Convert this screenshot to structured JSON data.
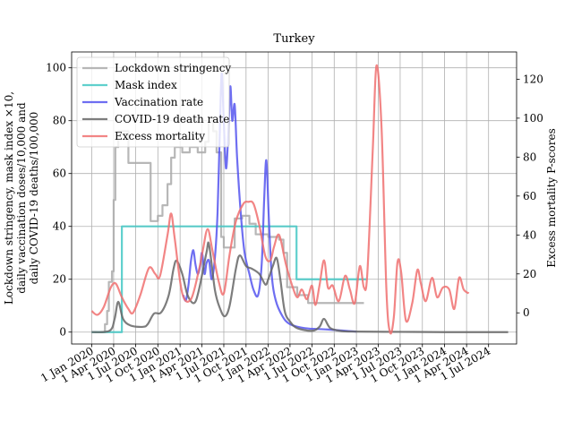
{
  "chart_data": {
    "type": "line",
    "title": "Turkey",
    "ylabel_left": [
      "Lockdown stringency, mask index ×10,",
      "daily vaccination doses/10,000 and",
      "daily COVID-19 deaths/100,000"
    ],
    "ylabel_right": "Excess mortality P-scores",
    "ylim_left": [
      -4.5,
      106
    ],
    "ylim_right": [
      -16,
      134
    ],
    "xlim": [
      "2019-10-10",
      "2024-10-25"
    ],
    "grid": true,
    "legend_position": "top-left",
    "x_ticks": [
      "2020-01-01",
      "2020-04-01",
      "2020-07-01",
      "2020-10-01",
      "2021-01-01",
      "2021-04-01",
      "2021-07-01",
      "2021-10-01",
      "2022-01-01",
      "2022-04-01",
      "2022-07-01",
      "2022-10-01",
      "2023-01-01",
      "2023-04-01",
      "2023-07-01",
      "2023-10-01",
      "2024-01-01",
      "2024-04-01",
      "2024-07-01"
    ],
    "x_tick_labels": [
      "1 Jan 2020",
      "1 Apr 2020",
      "1 Jul 2020",
      "1 Oct 2020",
      "1 Jan 2021",
      "1 Apr 2021",
      "1 Jul 2021",
      "1 Oct 2021",
      "1 Jan 2022",
      "1 Apr 2022",
      "1 Jul 2022",
      "1 Oct 2022",
      "1 Jan 2023",
      "1 Apr 2023",
      "1 Jul 2023",
      "1 Oct 2023",
      "1 Jan 2024",
      "1 Apr 2024",
      "1 Jul 2024"
    ],
    "y_ticks_left": [
      0,
      20,
      40,
      60,
      80,
      100
    ],
    "y_ticks_right": [
      0,
      20,
      40,
      60,
      80,
      100,
      120
    ],
    "series": [
      {
        "name": "Lockdown stringency",
        "axis": "left",
        "color": "#aaaaaa",
        "step": true,
        "points": [
          [
            "2020-01-01",
            0
          ],
          [
            "2020-02-05",
            0
          ],
          [
            "2020-02-25",
            3
          ],
          [
            "2020-03-05",
            8
          ],
          [
            "2020-03-12",
            19
          ],
          [
            "2020-03-25",
            23
          ],
          [
            "2020-04-01",
            50
          ],
          [
            "2020-04-08",
            70
          ],
          [
            "2020-04-20",
            76
          ],
          [
            "2020-05-15",
            76
          ],
          [
            "2020-06-01",
            64
          ],
          [
            "2020-08-15",
            64
          ],
          [
            "2020-09-01",
            42
          ],
          [
            "2020-09-15",
            42
          ],
          [
            "2020-10-01",
            44
          ],
          [
            "2020-10-20",
            48
          ],
          [
            "2020-11-10",
            56
          ],
          [
            "2020-11-25",
            66
          ],
          [
            "2020-12-10",
            70
          ],
          [
            "2020-12-25",
            70
          ],
          [
            "2021-01-10",
            68
          ],
          [
            "2021-02-10",
            70
          ],
          [
            "2021-03-15",
            68
          ],
          [
            "2021-04-15",
            72
          ],
          [
            "2021-04-29",
            80
          ],
          [
            "2021-05-18",
            76
          ],
          [
            "2021-06-01",
            68
          ],
          [
            "2021-06-20",
            36
          ],
          [
            "2021-07-01",
            32
          ],
          [
            "2021-08-01",
            32
          ],
          [
            "2021-08-15",
            43
          ],
          [
            "2021-09-15",
            44
          ],
          [
            "2021-10-15",
            41
          ],
          [
            "2021-11-10",
            37
          ],
          [
            "2022-01-01",
            36
          ],
          [
            "2022-02-15",
            35
          ],
          [
            "2022-03-05",
            30
          ],
          [
            "2022-03-20",
            17
          ],
          [
            "2022-05-01",
            14
          ],
          [
            "2022-06-15",
            11
          ],
          [
            "2022-10-01",
            11
          ],
          [
            "2022-12-01",
            11
          ],
          [
            "2023-02-01",
            11
          ]
        ]
      },
      {
        "name": "Mask index",
        "axis": "left",
        "color": "#44c8c4",
        "step": true,
        "points": [
          [
            "2020-01-01",
            0
          ],
          [
            "2020-05-01",
            0
          ],
          [
            "2020-05-05",
            40
          ],
          [
            "2022-04-25",
            40
          ],
          [
            "2022-04-28",
            20
          ],
          [
            "2023-02-10",
            20
          ]
        ]
      },
      {
        "name": "Vaccination rate",
        "axis": "left",
        "color": "#5555ee",
        "step": false,
        "points": [
          [
            "2021-01-14",
            14
          ],
          [
            "2021-01-25",
            12
          ],
          [
            "2021-02-05",
            18
          ],
          [
            "2021-02-15",
            27
          ],
          [
            "2021-02-25",
            31
          ],
          [
            "2021-03-05",
            26
          ],
          [
            "2021-03-15",
            22
          ],
          [
            "2021-03-25",
            25
          ],
          [
            "2021-04-02",
            30
          ],
          [
            "2021-04-12",
            22
          ],
          [
            "2021-04-20",
            26
          ],
          [
            "2021-05-01",
            27
          ],
          [
            "2021-05-12",
            20
          ],
          [
            "2021-05-25",
            28
          ],
          [
            "2021-06-05",
            45
          ],
          [
            "2021-06-15",
            78
          ],
          [
            "2021-06-22",
            98
          ],
          [
            "2021-06-30",
            82
          ],
          [
            "2021-07-10",
            62
          ],
          [
            "2021-07-20",
            76
          ],
          [
            "2021-07-28",
            93
          ],
          [
            "2021-08-05",
            80
          ],
          [
            "2021-08-15",
            86
          ],
          [
            "2021-08-25",
            66
          ],
          [
            "2021-09-10",
            44
          ],
          [
            "2021-09-25",
            30
          ],
          [
            "2021-10-15",
            22
          ],
          [
            "2021-11-01",
            16
          ],
          [
            "2021-11-20",
            14
          ],
          [
            "2021-12-05",
            26
          ],
          [
            "2021-12-15",
            50
          ],
          [
            "2021-12-24",
            65
          ],
          [
            "2022-01-03",
            44
          ],
          [
            "2022-01-15",
            22
          ],
          [
            "2022-02-01",
            12
          ],
          [
            "2022-03-01",
            6
          ],
          [
            "2022-04-01",
            3
          ],
          [
            "2022-06-01",
            1.5
          ],
          [
            "2022-09-01",
            1
          ],
          [
            "2022-12-01",
            0.4
          ],
          [
            "2023-01-01",
            0.2
          ]
        ]
      },
      {
        "name": "COVID-19 death rate",
        "axis": "left",
        "color": "#666666",
        "step": false,
        "points": [
          [
            "2020-01-01",
            0
          ],
          [
            "2020-03-15",
            0.5
          ],
          [
            "2020-04-05",
            5
          ],
          [
            "2020-04-20",
            11.5
          ],
          [
            "2020-05-10",
            5
          ],
          [
            "2020-06-10",
            2.5
          ],
          [
            "2020-08-01",
            2
          ],
          [
            "2020-08-20",
            3
          ],
          [
            "2020-09-15",
            7
          ],
          [
            "2020-10-15",
            7.5
          ],
          [
            "2020-11-15",
            14
          ],
          [
            "2020-12-05",
            24
          ],
          [
            "2020-12-18",
            27
          ],
          [
            "2021-01-10",
            22
          ],
          [
            "2021-02-01",
            14
          ],
          [
            "2021-02-28",
            11
          ],
          [
            "2021-03-20",
            16
          ],
          [
            "2021-04-20",
            30
          ],
          [
            "2021-05-01",
            33
          ],
          [
            "2021-05-25",
            16
          ],
          [
            "2021-06-15",
            9
          ],
          [
            "2021-07-05",
            6
          ],
          [
            "2021-07-25",
            10
          ],
          [
            "2021-08-20",
            24
          ],
          [
            "2021-09-05",
            29
          ],
          [
            "2021-10-01",
            25
          ],
          [
            "2021-10-25",
            24
          ],
          [
            "2021-11-25",
            22
          ],
          [
            "2021-12-20",
            18
          ],
          [
            "2022-01-01",
            20
          ],
          [
            "2022-01-20",
            25
          ],
          [
            "2022-02-05",
            28
          ],
          [
            "2022-02-20",
            20
          ],
          [
            "2022-03-10",
            8
          ],
          [
            "2022-04-01",
            4
          ],
          [
            "2022-05-01",
            1.5
          ],
          [
            "2022-07-01",
            0.5
          ],
          [
            "2022-08-01",
            2
          ],
          [
            "2022-08-20",
            5
          ],
          [
            "2022-09-15",
            1.5
          ],
          [
            "2022-11-01",
            0.4
          ],
          [
            "2023-01-01",
            0.2
          ],
          [
            "2023-07-01",
            0.1
          ],
          [
            "2024-01-01",
            0
          ],
          [
            "2024-09-20",
            0
          ]
        ]
      },
      {
        "name": "Excess mortality",
        "axis": "right",
        "color": "#f07070",
        "step": false,
        "points": [
          [
            "2020-01-01",
            1
          ],
          [
            "2020-01-25",
            -1
          ],
          [
            "2020-02-20",
            3
          ],
          [
            "2020-03-20",
            13
          ],
          [
            "2020-04-10",
            15
          ],
          [
            "2020-05-05",
            8
          ],
          [
            "2020-06-01",
            2
          ],
          [
            "2020-06-20",
            0
          ],
          [
            "2020-07-20",
            9
          ],
          [
            "2020-08-25",
            23
          ],
          [
            "2020-09-20",
            20
          ],
          [
            "2020-10-10",
            19
          ],
          [
            "2020-11-10",
            40
          ],
          [
            "2020-11-25",
            51
          ],
          [
            "2020-12-10",
            38
          ],
          [
            "2021-01-10",
            10
          ],
          [
            "2021-02-15",
            7
          ],
          [
            "2021-03-20",
            22
          ],
          [
            "2021-04-05",
            32
          ],
          [
            "2021-04-25",
            43
          ],
          [
            "2021-05-15",
            32
          ],
          [
            "2021-06-10",
            16
          ],
          [
            "2021-07-01",
            10
          ],
          [
            "2021-07-25",
            30
          ],
          [
            "2021-08-20",
            47
          ],
          [
            "2021-09-20",
            56
          ],
          [
            "2021-10-10",
            57
          ],
          [
            "2021-11-01",
            56
          ],
          [
            "2021-11-25",
            45
          ],
          [
            "2021-12-20",
            29
          ],
          [
            "2022-01-10",
            27
          ],
          [
            "2022-01-25",
            34
          ],
          [
            "2022-02-15",
            40
          ],
          [
            "2022-03-15",
            25
          ],
          [
            "2022-04-10",
            14
          ],
          [
            "2022-05-01",
            8
          ],
          [
            "2022-05-20",
            12
          ],
          [
            "2022-06-10",
            7
          ],
          [
            "2022-07-01",
            14
          ],
          [
            "2022-07-15",
            4
          ],
          [
            "2022-08-01",
            14
          ],
          [
            "2022-08-20",
            27
          ],
          [
            "2022-09-05",
            13
          ],
          [
            "2022-09-25",
            14
          ],
          [
            "2022-10-20",
            6
          ],
          [
            "2022-11-15",
            19
          ],
          [
            "2022-12-05",
            12
          ],
          [
            "2022-12-25",
            5
          ],
          [
            "2023-01-15",
            24
          ],
          [
            "2023-02-01",
            13
          ],
          [
            "2023-02-15",
            20
          ],
          [
            "2023-03-10",
            85
          ],
          [
            "2023-03-25",
            127
          ],
          [
            "2023-04-15",
            95
          ],
          [
            "2023-05-05",
            12
          ],
          [
            "2023-05-20",
            -10
          ],
          [
            "2023-06-05",
            -2
          ],
          [
            "2023-06-20",
            26
          ],
          [
            "2023-07-05",
            21
          ],
          [
            "2023-07-25",
            -4
          ],
          [
            "2023-08-20",
            5
          ],
          [
            "2023-09-10",
            22
          ],
          [
            "2023-09-25",
            15
          ],
          [
            "2023-10-15",
            6
          ],
          [
            "2023-11-10",
            18
          ],
          [
            "2023-12-01",
            8
          ],
          [
            "2023-12-25",
            13
          ],
          [
            "2024-01-20",
            12
          ],
          [
            "2024-02-10",
            2
          ],
          [
            "2024-03-01",
            18
          ],
          [
            "2024-03-20",
            12
          ],
          [
            "2024-04-10",
            10
          ]
        ]
      }
    ]
  }
}
